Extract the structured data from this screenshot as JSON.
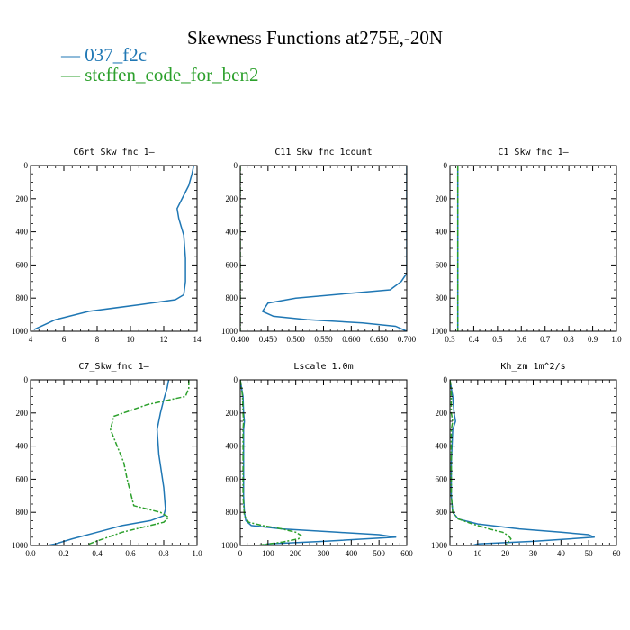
{
  "title": "Skewness Functions at275E,-20N",
  "colors": {
    "series_0": "#1f77b4",
    "series_1": "#2ca02c"
  },
  "legend": [
    {
      "label": "— 037_f2c",
      "color": "#1f77b4"
    },
    {
      "label": "— steffen_code_for_ben2",
      "color": "#2ca02c"
    }
  ],
  "chart_data": [
    {
      "type": "line",
      "title": "C6rt_Skw_fnc   1—",
      "xlim": [
        4,
        14
      ],
      "ylim": [
        1000,
        0
      ],
      "xticks": [
        4,
        6,
        8,
        10,
        12,
        14
      ],
      "xtick_labels": [
        "4",
        "6",
        "8",
        "10",
        "12",
        "14"
      ],
      "yticks": [
        0,
        200,
        400,
        600,
        800,
        1000
      ],
      "ytick_labels": [
        "0",
        "200",
        "400",
        "600",
        "800",
        "1000"
      ],
      "series": [
        {
          "color": "#1f77b4",
          "dash": "",
          "x": [
            13.8,
            13.7,
            13.5,
            13.2,
            12.8,
            12.9,
            13.2,
            13.3,
            13.3,
            13.2,
            12.7,
            10.5,
            7.5,
            5.5,
            4.2
          ],
          "y": [
            0,
            50,
            120,
            180,
            260,
            320,
            420,
            560,
            700,
            780,
            810,
            840,
            880,
            930,
            990
          ]
        },
        {
          "color": "#2ca02c",
          "dash": "6 2 2 2",
          "x": [
            4.0,
            4.0
          ],
          "y": [
            0,
            1000
          ]
        }
      ]
    },
    {
      "type": "line",
      "title": "C11_Skw_fnc   1count",
      "xlim": [
        0.4,
        0.7
      ],
      "ylim": [
        1000,
        0
      ],
      "xticks": [
        0.4,
        0.45,
        0.5,
        0.55,
        0.6,
        0.65,
        0.7
      ],
      "xtick_labels": [
        "0.400",
        "0.450",
        "0.500",
        "0.550",
        "0.600",
        "0.650",
        "0.700"
      ],
      "yticks": [
        0,
        200,
        400,
        600,
        800,
        1000
      ],
      "ytick_labels": [
        "0",
        "200",
        "400",
        "600",
        "800",
        "1000"
      ],
      "series": [
        {
          "color": "#1f77b4",
          "dash": "",
          "x": [
            0.7,
            0.7,
            0.7,
            0.69,
            0.67,
            0.6,
            0.5,
            0.45,
            0.44,
            0.46,
            0.52,
            0.62,
            0.68,
            0.7
          ],
          "y": [
            0,
            300,
            650,
            700,
            750,
            770,
            800,
            830,
            880,
            910,
            930,
            950,
            970,
            1000
          ]
        },
        {
          "color": "#2ca02c",
          "dash": "6 2 2 2",
          "x": [
            0.4,
            0.4
          ],
          "y": [
            0,
            1000
          ]
        }
      ]
    },
    {
      "type": "line",
      "title": "C1_Skw_fnc   1—",
      "xlim": [
        0.3,
        1.0
      ],
      "ylim": [
        1000,
        0
      ],
      "xticks": [
        0.3,
        0.4,
        0.5,
        0.6,
        0.7,
        0.8,
        0.9,
        1.0
      ],
      "xtick_labels": [
        "0.3",
        "0.4",
        "0.5",
        "0.6",
        "0.7",
        "0.8",
        "0.9",
        "1.0"
      ],
      "yticks": [
        0,
        200,
        400,
        600,
        800,
        1000
      ],
      "ytick_labels": [
        "0",
        "200",
        "400",
        "600",
        "800",
        "1000"
      ],
      "series": [
        {
          "color": "#1f77b4",
          "dash": "",
          "x": [
            0.333,
            0.333
          ],
          "y": [
            0,
            1000
          ]
        },
        {
          "color": "#2ca02c",
          "dash": "6 2 2 2",
          "x": [
            0.333,
            0.333
          ],
          "y": [
            0,
            1000
          ]
        }
      ]
    },
    {
      "type": "line",
      "title": "C7_Skw_fnc   1—",
      "xlim": [
        0.0,
        1.0
      ],
      "ylim": [
        1000,
        0
      ],
      "xticks": [
        0.0,
        0.2,
        0.4,
        0.6,
        0.8,
        1.0
      ],
      "xtick_labels": [
        "0.0",
        "0.2",
        "0.4",
        "0.6",
        "0.8",
        "1.0"
      ],
      "yticks": [
        0,
        200,
        400,
        600,
        800,
        1000
      ],
      "ytick_labels": [
        "0",
        "200",
        "400",
        "600",
        "800",
        "1000"
      ],
      "series": [
        {
          "color": "#1f77b4",
          "dash": "",
          "x": [
            0.83,
            0.82,
            0.8,
            0.78,
            0.76,
            0.77,
            0.8,
            0.81,
            0.8,
            0.72,
            0.55,
            0.4,
            0.25,
            0.15,
            0.1
          ],
          "y": [
            0,
            50,
            120,
            200,
            300,
            450,
            650,
            780,
            820,
            850,
            880,
            920,
            960,
            990,
            1000
          ]
        },
        {
          "color": "#2ca02c",
          "dash": "6 2 2 2",
          "x": [
            0.95,
            0.95,
            0.93,
            0.7,
            0.5,
            0.48,
            0.52,
            0.56,
            0.58,
            0.62,
            0.78,
            0.83,
            0.8,
            0.55,
            0.38,
            0.33
          ],
          "y": [
            0,
            50,
            100,
            150,
            220,
            300,
            400,
            500,
            600,
            760,
            800,
            830,
            860,
            920,
            980,
            1000
          ]
        }
      ]
    },
    {
      "type": "line",
      "title": "Lscale   1.0m",
      "xlim": [
        0,
        600
      ],
      "ylim": [
        1000,
        0
      ],
      "xticks": [
        0,
        100,
        200,
        300,
        400,
        500,
        600
      ],
      "xtick_labels": [
        "0",
        "100",
        "200",
        "300",
        "400",
        "500",
        "600"
      ],
      "yticks": [
        0,
        200,
        400,
        600,
        800,
        1000
      ],
      "ytick_labels": [
        "0",
        "200",
        "400",
        "600",
        "800",
        "1000"
      ],
      "series": [
        {
          "color": "#1f77b4",
          "dash": "",
          "x": [
            0,
            5,
            10,
            12,
            15,
            12,
            12,
            12,
            15,
            20,
            40,
            150,
            350,
            500,
            560,
            300,
            100,
            80
          ],
          "y": [
            0,
            50,
            100,
            200,
            250,
            300,
            500,
            700,
            800,
            850,
            880,
            900,
            920,
            935,
            950,
            975,
            990,
            1000
          ]
        },
        {
          "color": "#2ca02c",
          "dash": "6 2 2 2",
          "x": [
            0,
            5,
            8,
            10,
            12,
            10,
            10,
            10,
            15,
            30,
            80,
            150,
            200,
            220,
            210,
            150,
            60
          ],
          "y": [
            0,
            50,
            100,
            200,
            250,
            300,
            500,
            700,
            820,
            860,
            880,
            900,
            920,
            940,
            960,
            980,
            1000
          ]
        }
      ]
    },
    {
      "type": "line",
      "title": "Kh_zm   1m^2/s",
      "xlim": [
        0,
        60
      ],
      "ylim": [
        1000,
        0
      ],
      "xticks": [
        0,
        10,
        20,
        30,
        40,
        50,
        60
      ],
      "xtick_labels": [
        "0",
        "10",
        "20",
        "30",
        "40",
        "50",
        "60"
      ],
      "yticks": [
        0,
        200,
        400,
        600,
        800,
        1000
      ],
      "ytick_labels": [
        "0",
        "200",
        "400",
        "600",
        "800",
        "1000"
      ],
      "series": [
        {
          "color": "#1f77b4",
          "dash": "",
          "x": [
            0,
            0.5,
            1,
            1.5,
            2,
            1,
            0.5,
            0.5,
            1,
            3,
            10,
            25,
            40,
            50,
            52,
            30,
            10,
            8
          ],
          "y": [
            0,
            50,
            100,
            200,
            250,
            300,
            500,
            700,
            800,
            840,
            870,
            900,
            920,
            935,
            950,
            975,
            990,
            1000
          ]
        },
        {
          "color": "#2ca02c",
          "dash": "6 2 2 2",
          "x": [
            0,
            0.5,
            0.5,
            0.5,
            1,
            0.5,
            0.5,
            0.5,
            1,
            3,
            8,
            14,
            19,
            21,
            22,
            21,
            20
          ],
          "y": [
            0,
            50,
            100,
            200,
            250,
            300,
            500,
            700,
            800,
            840,
            870,
            900,
            920,
            940,
            960,
            980,
            1000
          ]
        }
      ]
    }
  ]
}
